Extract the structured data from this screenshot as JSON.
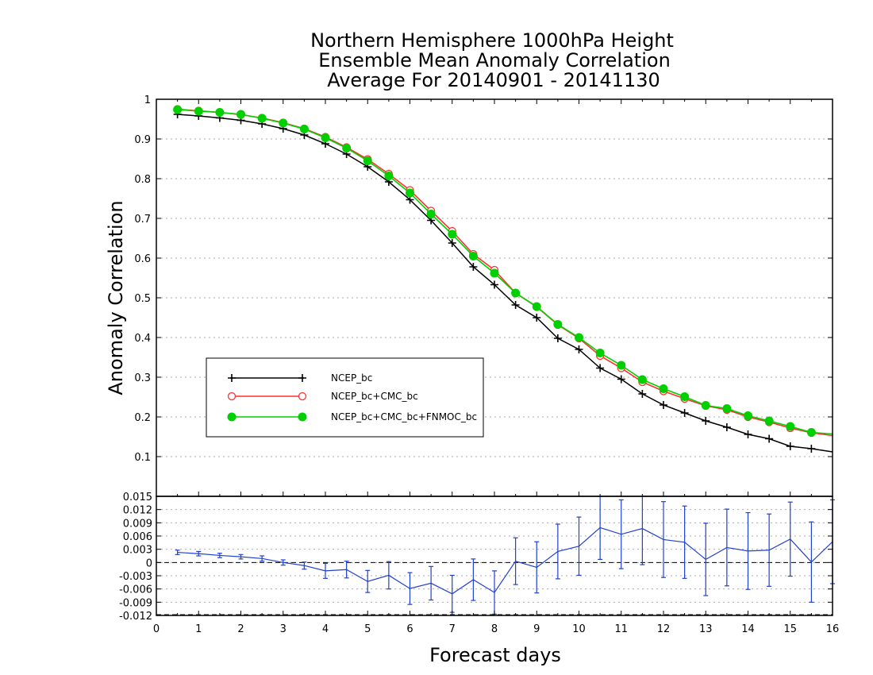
{
  "chart_data": [
    {
      "type": "line",
      "title": [
        "Northern Hemisphere 1000hPa Height",
        "Ensemble Mean Anomaly Correlation",
        "Average For 20140901 - 20141130"
      ],
      "ylabel": "Anomaly Correlation",
      "xlabel": "",
      "xlim": [
        0,
        16
      ],
      "ylim": [
        0,
        1
      ],
      "yticks": [
        "0.1",
        "0.2",
        "0.3",
        "0.4",
        "0.5",
        "0.6",
        "0.7",
        "0.8",
        "0.9",
        "1"
      ],
      "grid": true,
      "legend_position": "lower-left",
      "x": [
        0.5,
        1,
        1.5,
        2,
        2.5,
        3,
        3.5,
        4,
        4.5,
        5,
        5.5,
        6,
        6.5,
        7,
        7.5,
        8,
        8.5,
        9,
        9.5,
        10,
        10.5,
        11,
        11.5,
        12,
        12.5,
        13,
        13.5,
        14,
        14.5,
        15,
        15.5,
        16
      ],
      "series": [
        {
          "name": "NCEP_bc",
          "color": "#000000",
          "marker": "plus",
          "values": [
            0.962,
            0.958,
            0.953,
            0.947,
            0.938,
            0.926,
            0.91,
            0.888,
            0.862,
            0.83,
            0.792,
            0.747,
            0.695,
            0.638,
            0.578,
            0.533,
            0.482,
            0.45,
            0.398,
            0.37,
            0.323,
            0.295,
            0.258,
            0.23,
            0.21,
            0.19,
            0.174,
            0.156,
            0.145,
            0.126,
            0.12,
            0.112
          ]
        },
        {
          "name": "NCEP_bc+CMC_bc",
          "color": "#ff3030",
          "marker": "open-circle",
          "values": [
            0.975,
            0.971,
            0.967,
            0.961,
            0.953,
            0.941,
            0.926,
            0.905,
            0.879,
            0.849,
            0.812,
            0.771,
            0.719,
            0.668,
            0.61,
            0.57,
            0.512,
            0.477,
            0.432,
            0.398,
            0.354,
            0.323,
            0.288,
            0.265,
            0.246,
            0.228,
            0.218,
            0.2,
            0.187,
            0.172,
            0.16,
            0.153
          ]
        },
        {
          "name": "NCEP_bc+CMC_bc+FNMOC_bc",
          "color": "#00d000",
          "marker": "filled-circle",
          "values": [
            0.974,
            0.97,
            0.967,
            0.962,
            0.952,
            0.94,
            0.925,
            0.903,
            0.877,
            0.845,
            0.807,
            0.764,
            0.711,
            0.66,
            0.605,
            0.562,
            0.512,
            0.478,
            0.433,
            0.4,
            0.361,
            0.33,
            0.294,
            0.271,
            0.251,
            0.229,
            0.221,
            0.203,
            0.19,
            0.176,
            0.161,
            0.157
          ]
        }
      ]
    },
    {
      "type": "line",
      "xlabel": "Forecast days",
      "ylabel": "",
      "xlim": [
        0,
        16
      ],
      "xticks": [
        "0",
        "1",
        "2",
        "3",
        "4",
        "5",
        "6",
        "7",
        "8",
        "9",
        "10",
        "11",
        "12",
        "13",
        "14",
        "15",
        "16"
      ],
      "ylim": [
        -0.012,
        0.015
      ],
      "yticks": [
        "-0.012",
        "-0.009",
        "-0.006",
        "-0.003",
        "0",
        "0.003",
        "0.006",
        "0.009",
        "0.012",
        "0.015"
      ],
      "grid": true,
      "x": [
        0.5,
        1,
        1.5,
        2,
        2.5,
        3,
        3.5,
        4,
        4.5,
        5,
        5.5,
        6,
        6.5,
        7,
        7.5,
        8,
        8.5,
        9,
        9.5,
        10,
        10.5,
        11,
        11.5,
        12,
        12.5,
        13,
        13.5,
        14,
        14.5,
        15,
        15.5,
        16
      ],
      "series": [
        {
          "color": "#2040d0",
          "marker": "error-bar",
          "values": [
            0.0023,
            0.002,
            0.0016,
            0.0013,
            0.0009,
            0.0,
            -0.0007,
            -0.0019,
            -0.0016,
            -0.0043,
            -0.0029,
            -0.0059,
            -0.0047,
            -0.0071,
            -0.0039,
            -0.0068,
            0.0003,
            -0.0011,
            0.0025,
            0.0037,
            0.0079,
            0.0064,
            0.0077,
            0.0052,
            0.0046,
            0.0007,
            0.0034,
            0.0026,
            0.0028,
            0.0053,
            0.0001,
            0.0047
          ],
          "error": [
            0.0005,
            0.0005,
            0.0005,
            0.0005,
            0.0006,
            0.0006,
            0.0008,
            0.0017,
            0.0019,
            0.0025,
            0.0031,
            0.0036,
            0.0038,
            0.0042,
            0.0047,
            0.0049,
            0.0053,
            0.0058,
            0.0062,
            0.0066,
            0.0072,
            0.0078,
            0.0082,
            0.0086,
            0.0082,
            0.0082,
            0.0087,
            0.0087,
            0.0082,
            0.0084,
            0.0091,
            0.0095
          ]
        }
      ]
    }
  ]
}
